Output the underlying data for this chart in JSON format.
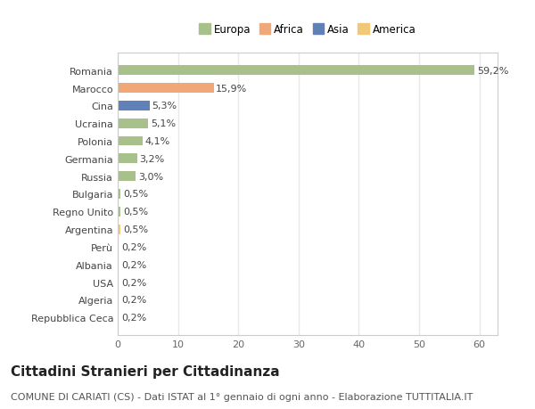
{
  "categories": [
    "Repubblica Ceca",
    "Algeria",
    "USA",
    "Albania",
    "Perù",
    "Argentina",
    "Regno Unito",
    "Bulgaria",
    "Russia",
    "Germania",
    "Polonia",
    "Ucraina",
    "Cina",
    "Marocco",
    "Romania"
  ],
  "values": [
    0.2,
    0.2,
    0.2,
    0.2,
    0.2,
    0.5,
    0.5,
    0.5,
    3.0,
    3.2,
    4.1,
    5.1,
    5.3,
    15.9,
    59.2
  ],
  "labels": [
    "0,2%",
    "0,2%",
    "0,2%",
    "0,2%",
    "0,2%",
    "0,5%",
    "0,5%",
    "0,5%",
    "3,0%",
    "3,2%",
    "4,1%",
    "5,1%",
    "5,3%",
    "15,9%",
    "59,2%"
  ],
  "colors": [
    "#a8c08a",
    "#a8c08a",
    "#f0c878",
    "#a8c08a",
    "#f0c878",
    "#f0c878",
    "#a8c08a",
    "#a8c08a",
    "#a8c08a",
    "#a8c08a",
    "#a8c08a",
    "#a8c08a",
    "#6080b8",
    "#f0a878",
    "#a8c08a"
  ],
  "legend_labels": [
    "Europa",
    "Africa",
    "Asia",
    "America"
  ],
  "legend_colors": [
    "#a8c08a",
    "#f0a878",
    "#6080b8",
    "#f0c878"
  ],
  "title": "Cittadini Stranieri per Cittadinanza",
  "subtitle": "COMUNE DI CARIATI (CS) - Dati ISTAT al 1° gennaio di ogni anno - Elaborazione TUTTITALIA.IT",
  "xlim": [
    0,
    63
  ],
  "xticks": [
    0,
    10,
    20,
    30,
    40,
    50,
    60
  ],
  "background_color": "#ffffff",
  "plot_bg_color": "#ffffff",
  "grid_color": "#e8e8e8",
  "title_fontsize": 11,
  "subtitle_fontsize": 8,
  "label_fontsize": 8,
  "tick_fontsize": 8,
  "legend_fontsize": 8.5
}
